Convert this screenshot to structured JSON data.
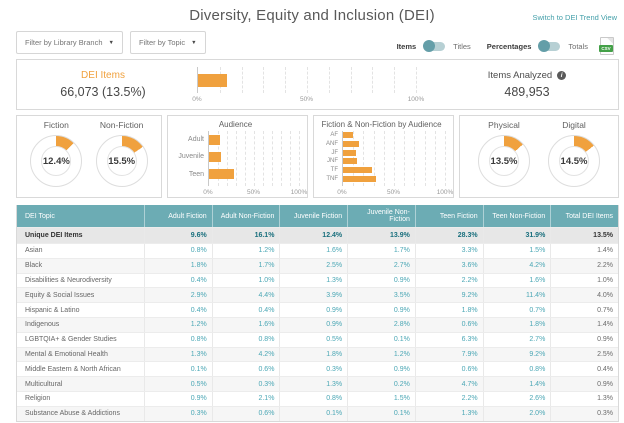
{
  "header": {
    "title": "Diversity, Equity and Inclusion (DEI)",
    "trend_link": "Switch to DEI Trend View"
  },
  "icons": {
    "dropdown": "▼",
    "info": "i",
    "csv": "CSV"
  },
  "colors": {
    "accent_orange": "#F0A13E",
    "header_teal": "#6CACB4",
    "link_teal": "#44A0AA",
    "value_teal": "#4BA7B5",
    "dark_teal": "#196F7D",
    "csv_green": "#43A047"
  },
  "filters": [
    {
      "label": "Filter by Library Branch"
    },
    {
      "label": "Filter by Topic"
    }
  ],
  "controls": {
    "toggles": [
      {
        "left_label": "Items",
        "right_label": "Titles",
        "selected": "left"
      },
      {
        "left_label": "Percentages",
        "right_label": "Totals",
        "selected": "left"
      }
    ]
  },
  "summary": {
    "dei_items_label": "DEI Items",
    "dei_items_value": "66,073 (13.5%)",
    "items_analyzed_label": "Items Analyzed",
    "items_analyzed_value": "489,953"
  },
  "chart_data": [
    {
      "id": "dei-items-gauge",
      "type": "bar",
      "orientation": "horizontal",
      "categories": [
        "DEI Items"
      ],
      "values": [
        13.5
      ],
      "xlim": [
        0,
        100
      ],
      "ticks": [
        "0%",
        "50%",
        "100%"
      ],
      "gridline_step_pct": 10
    },
    {
      "id": "fiction-donut",
      "type": "pie",
      "label": "Fiction",
      "value_label": "12.4%",
      "value_pct": 12.4
    },
    {
      "id": "non-fiction-donut",
      "type": "pie",
      "label": "Non-Fiction",
      "value_label": "15.5%",
      "value_pct": 15.5
    },
    {
      "id": "audience-bars",
      "type": "bar",
      "orientation": "horizontal",
      "title": "Audience",
      "categories": [
        "Adult",
        "Juvenile",
        "Teen"
      ],
      "values": [
        12.3,
        13.2,
        28.1
      ],
      "xlim": [
        0,
        100
      ],
      "ticks": [
        "0%",
        "50%",
        "100%"
      ],
      "gridline_step_pct": 10
    },
    {
      "id": "by-audience-bars",
      "type": "bar",
      "orientation": "horizontal",
      "title": "Fiction & Non-Fiction by Audience",
      "categories": [
        "AF",
        "ANF",
        "JF",
        "JNF",
        "TF",
        "TNF"
      ],
      "values": [
        9.6,
        16.1,
        12.4,
        13.9,
        28.3,
        31.9
      ],
      "xlim": [
        0,
        100
      ],
      "ticks": [
        "0%",
        "50%",
        "100%"
      ],
      "gridline_step_pct": 10
    },
    {
      "id": "physical-donut",
      "type": "pie",
      "label": "Physical",
      "value_label": "13.5%",
      "value_pct": 13.5
    },
    {
      "id": "digital-donut",
      "type": "pie",
      "label": "Digital",
      "value_label": "14.5%",
      "value_pct": 14.5
    }
  ],
  "table": {
    "columns": [
      "DEI Topic",
      "Adult Fiction",
      "Adult Non-Fiction",
      "Juvenile Fiction",
      "Juvenile Non-Fiction",
      "Teen Fiction",
      "Teen Non-Fiction",
      "Total DEI Items"
    ],
    "unique_row": {
      "label": "Unique DEI Items",
      "values": [
        "9.6%",
        "16.1%",
        "12.4%",
        "13.9%",
        "28.3%",
        "31.9%",
        "13.5%"
      ]
    },
    "rows": [
      {
        "label": "Asian",
        "values": [
          "0.8%",
          "1.2%",
          "1.6%",
          "1.7%",
          "3.3%",
          "1.5%",
          "1.4%"
        ]
      },
      {
        "label": "Black",
        "values": [
          "1.8%",
          "1.7%",
          "2.5%",
          "2.7%",
          "3.6%",
          "4.2%",
          "2.2%"
        ]
      },
      {
        "label": "Disabilities & Neurodiversity",
        "values": [
          "0.4%",
          "1.0%",
          "1.3%",
          "0.9%",
          "2.2%",
          "1.6%",
          "1.0%"
        ]
      },
      {
        "label": "Equity & Social Issues",
        "values": [
          "2.9%",
          "4.4%",
          "3.9%",
          "3.5%",
          "9.2%",
          "11.4%",
          "4.0%"
        ]
      },
      {
        "label": "Hispanic & Latino",
        "values": [
          "0.4%",
          "0.4%",
          "0.9%",
          "0.9%",
          "1.8%",
          "0.7%",
          "0.7%"
        ]
      },
      {
        "label": "Indigenous",
        "values": [
          "1.2%",
          "1.6%",
          "0.9%",
          "2.8%",
          "0.6%",
          "1.8%",
          "1.4%"
        ]
      },
      {
        "label": "LGBTQIA+ & Gender Studies",
        "values": [
          "0.8%",
          "0.8%",
          "0.5%",
          "0.1%",
          "6.3%",
          "2.7%",
          "0.9%"
        ]
      },
      {
        "label": "Mental & Emotional Health",
        "values": [
          "1.3%",
          "4.2%",
          "1.8%",
          "1.2%",
          "7.9%",
          "9.2%",
          "2.5%"
        ]
      },
      {
        "label": "Middle Eastern & North African",
        "values": [
          "0.1%",
          "0.6%",
          "0.3%",
          "0.9%",
          "0.6%",
          "0.8%",
          "0.4%"
        ]
      },
      {
        "label": "Multicultural",
        "values": [
          "0.5%",
          "0.3%",
          "1.3%",
          "0.2%",
          "4.7%",
          "1.4%",
          "0.9%"
        ]
      },
      {
        "label": "Religion",
        "values": [
          "0.9%",
          "2.1%",
          "0.8%",
          "1.5%",
          "2.2%",
          "2.6%",
          "1.3%"
        ]
      },
      {
        "label": "Substance Abuse & Addictions",
        "values": [
          "0.3%",
          "0.6%",
          "0.1%",
          "0.1%",
          "1.3%",
          "2.0%",
          "0.3%"
        ]
      }
    ]
  }
}
